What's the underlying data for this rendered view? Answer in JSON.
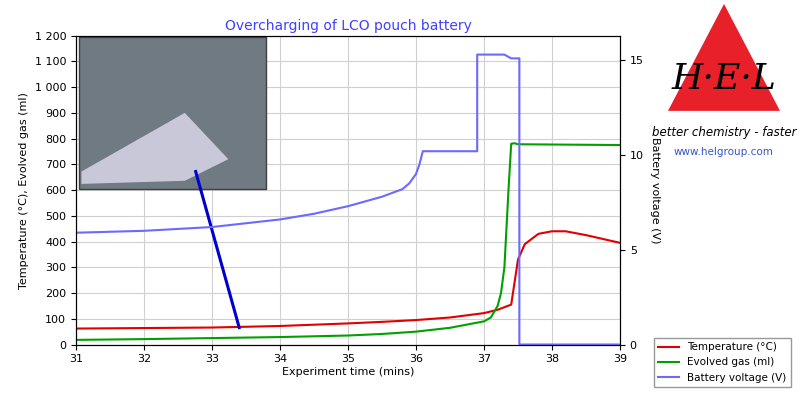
{
  "chart_data": {
    "type": "line",
    "title": "Overcharging of LCO pouch battery",
    "x_label": "Experiment time (mins)",
    "y_label": "Temperature (°C), Evolved gas (ml)",
    "y2_label": "Battery voltage (V)",
    "xlim": [
      31,
      39
    ],
    "xticks": [
      31,
      32,
      33,
      34,
      35,
      36,
      37,
      38,
      39
    ],
    "ylim": [
      0,
      1200
    ],
    "yticks": [
      0,
      100,
      200,
      300,
      400,
      500,
      600,
      700,
      800,
      900,
      {
        "value": 1000,
        "label": "1 000"
      },
      {
        "value": 1100,
        "label": "1 100"
      },
      {
        "value": 1200,
        "label": "1 200"
      }
    ],
    "y2lim": [
      0,
      16.3
    ],
    "y2ticks": [
      0,
      5,
      10,
      15
    ],
    "grid": true,
    "legend": "lower right",
    "annotations": [
      "H·E·L",
      "better chemistry - faster",
      "www.helgroup.com"
    ],
    "series": [
      {
        "name": "Temperature (°C)",
        "color": "#e00000",
        "axis": "y",
        "x": [
          31,
          32,
          33,
          34,
          35,
          35.5,
          36,
          36.5,
          37,
          37.2,
          37.3,
          37.4,
          37.5,
          37.6,
          37.8,
          38.0,
          38.2,
          38.5,
          39
        ],
        "values": [
          62,
          64,
          66,
          72,
          82,
          88,
          95,
          105,
          122,
          135,
          145,
          155,
          330,
          390,
          430,
          440,
          440,
          425,
          395
        ]
      },
      {
        "name": "Evolved gas (ml)",
        "color": "#00a000",
        "axis": "y",
        "x": [
          31,
          32,
          33,
          34,
          35,
          35.5,
          36,
          36.5,
          37,
          37.1,
          37.2,
          37.25,
          37.3,
          37.36,
          37.4,
          37.45,
          37.5,
          38,
          39
        ],
        "values": [
          18,
          21,
          25,
          29,
          35,
          41,
          50,
          65,
          90,
          105,
          150,
          200,
          300,
          600,
          780,
          782,
          778,
          777,
          775
        ]
      },
      {
        "name": "Battery voltage (V)",
        "color": "#6a6aff",
        "axis": "y2",
        "x": [
          31,
          32,
          33,
          34,
          34.5,
          35,
          35.5,
          35.8,
          35.9,
          36.0,
          36.05,
          36.1,
          36.9,
          36.9,
          37.3,
          37.4,
          37.52,
          37.52,
          39
        ],
        "values": [
          5.9,
          6.0,
          6.2,
          6.6,
          6.9,
          7.3,
          7.8,
          8.2,
          8.5,
          9.0,
          9.5,
          10.2,
          10.2,
          15.3,
          15.3,
          15.1,
          15.1,
          0,
          0
        ]
      }
    ]
  }
}
